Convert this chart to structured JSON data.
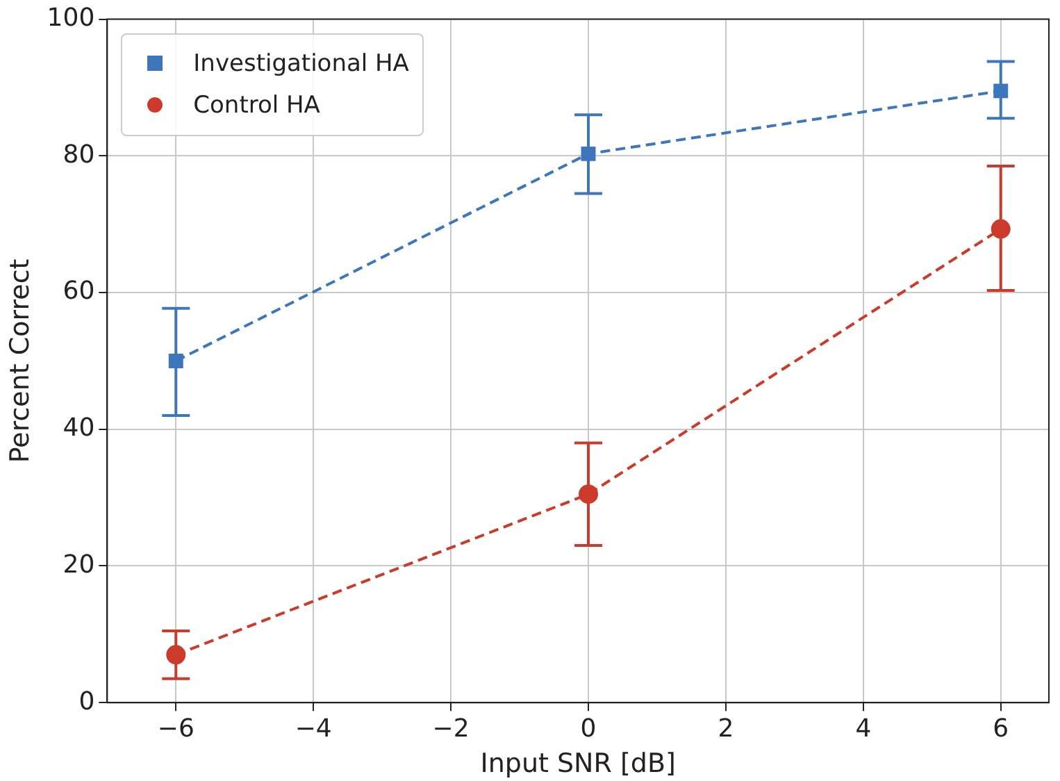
{
  "chart_data": {
    "type": "line",
    "xlabel": "Input SNR [dB]",
    "ylabel": "Percent Correct",
    "x": [
      -6,
      0,
      6
    ],
    "series": [
      {
        "name": "Investigational HA",
        "color": "#3d76bb",
        "marker": "square",
        "values": [
          50,
          80.3,
          89.5
        ],
        "errors": [
          [
            42,
            57.7
          ],
          [
            74.5,
            86
          ],
          [
            85.5,
            93.8
          ]
        ]
      },
      {
        "name": "Control HA",
        "color": "#cc3a2b",
        "marker": "circle",
        "values": [
          7,
          30.5,
          69.3
        ],
        "errors": [
          [
            3.5,
            10.5
          ],
          [
            23,
            38
          ],
          [
            60.3,
            78.5
          ]
        ]
      }
    ],
    "xlim": [
      -7,
      6.7
    ],
    "xticks": [
      {
        "value": -6,
        "label": "−6"
      },
      {
        "value": -4,
        "label": "−4"
      },
      {
        "value": -2,
        "label": "−2"
      },
      0,
      2,
      4,
      6
    ],
    "ylim": [
      0,
      100
    ],
    "yticks": [
      0,
      20,
      40,
      60,
      80,
      100
    ],
    "grid": true,
    "legend": "top left",
    "line_style": "dashed"
  }
}
